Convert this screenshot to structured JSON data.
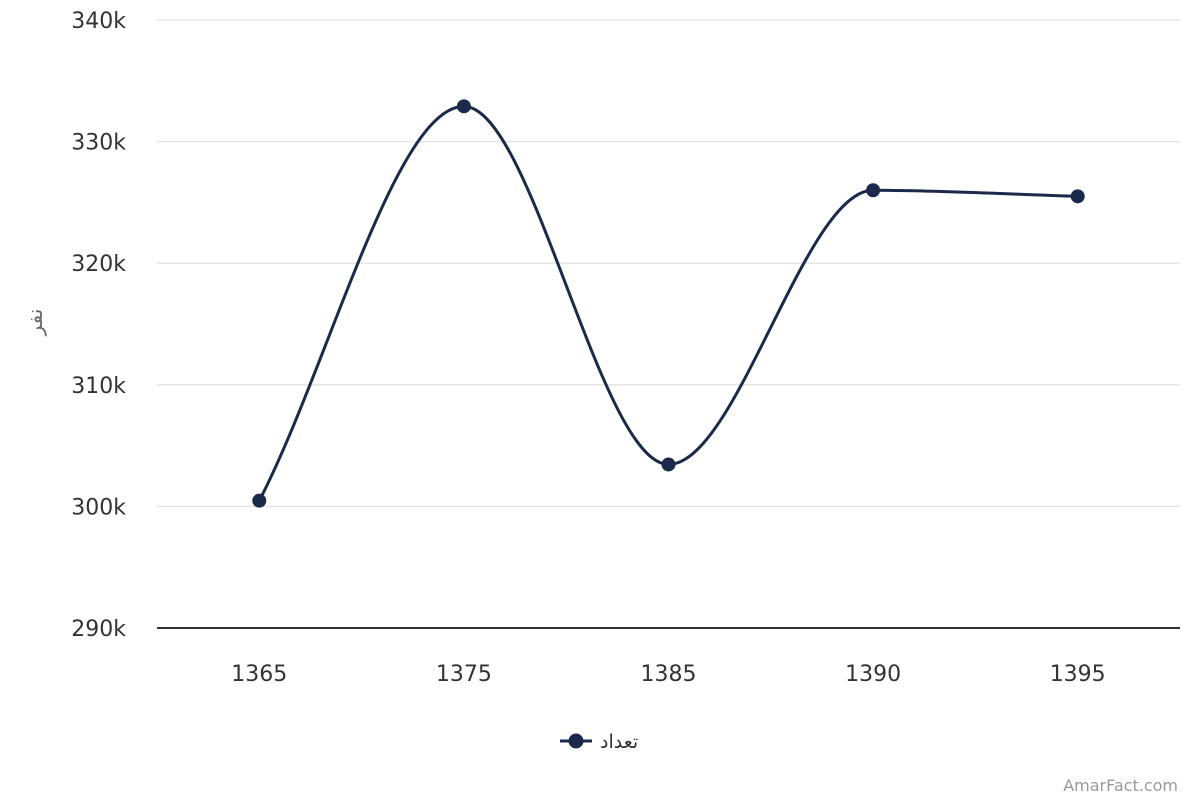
{
  "chart_data": {
    "type": "line",
    "smooth": true,
    "categories": [
      "1365",
      "1375",
      "1385",
      "1390",
      "1395"
    ],
    "series": [
      {
        "name": "تعداد",
        "values": [
          300470,
          332900,
          303450,
          326000,
          325500
        ]
      }
    ],
    "ylabel": "نفر",
    "xlabel": "",
    "ylim": [
      290000,
      340000
    ],
    "yticks": [
      290000,
      300000,
      310000,
      320000,
      330000,
      340000
    ],
    "ytick_labels": [
      "290k",
      "300k",
      "310k",
      "320k",
      "330k",
      "340k"
    ],
    "grid": true,
    "legend": "bottom-center",
    "line_color": "#1b2a4a",
    "grid_color": "#e6e6e6",
    "axis_color": "#333333"
  },
  "credit": "AmarFact.com"
}
